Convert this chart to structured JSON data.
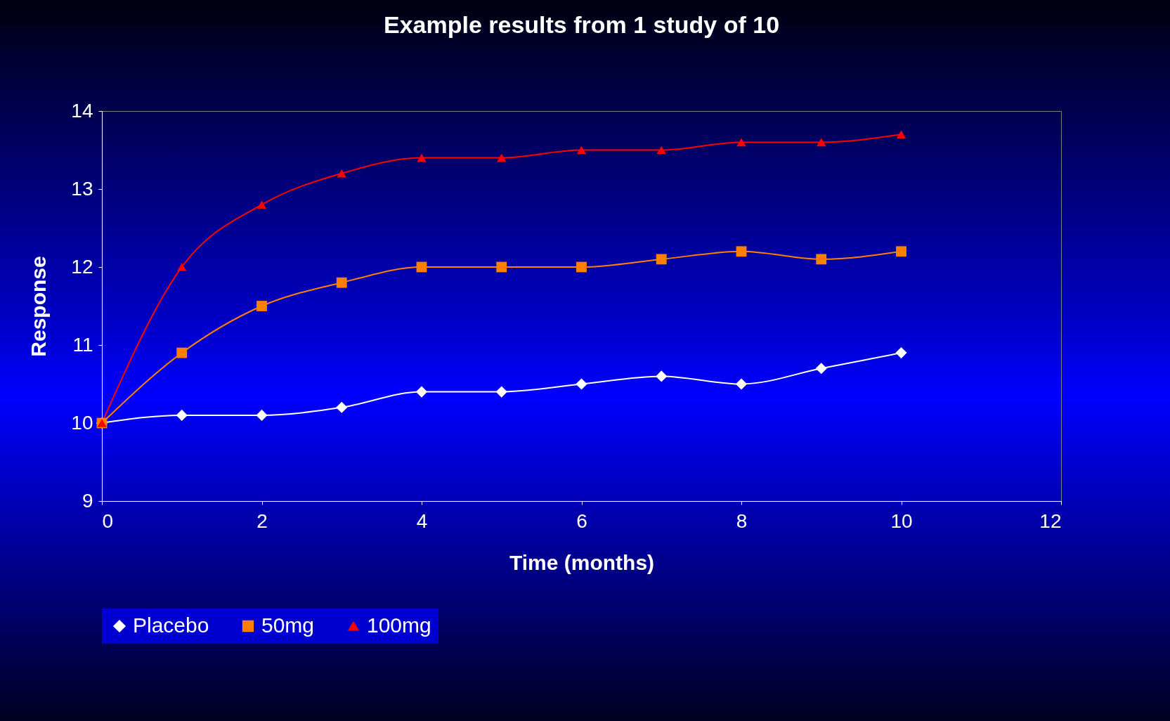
{
  "chart_data": {
    "type": "line",
    "title": "Example results from 1 study of 10",
    "xlabel": "Time (months)",
    "ylabel": "Response",
    "x": [
      0,
      1,
      2,
      3,
      4,
      5,
      6,
      7,
      8,
      9,
      10
    ],
    "series": [
      {
        "name": "Placebo",
        "color": "#ffffff",
        "marker": "diamond",
        "values": [
          10,
          10.1,
          10.1,
          10.2,
          10.4,
          10.4,
          10.5,
          10.6,
          10.5,
          10.7,
          10.9
        ]
      },
      {
        "name": "50mg",
        "color": "#ff8000",
        "marker": "square",
        "values": [
          10,
          10.9,
          11.5,
          11.8,
          12.0,
          12.0,
          12.0,
          12.1,
          12.2,
          12.1,
          12.2
        ]
      },
      {
        "name": "100mg",
        "color": "#ff0000",
        "marker": "triangle",
        "values": [
          10,
          12.0,
          12.8,
          13.2,
          13.4,
          13.4,
          13.5,
          13.5,
          13.6,
          13.6,
          13.7
        ]
      }
    ],
    "xlim": [
      0,
      12
    ],
    "xticks": [
      0,
      2,
      4,
      6,
      8,
      10,
      12
    ],
    "ylim": [
      9,
      14
    ],
    "yticks": [
      9,
      10,
      11,
      12,
      13,
      14
    ],
    "grid": false,
    "legend": "bottom",
    "line_style": "solid"
  }
}
